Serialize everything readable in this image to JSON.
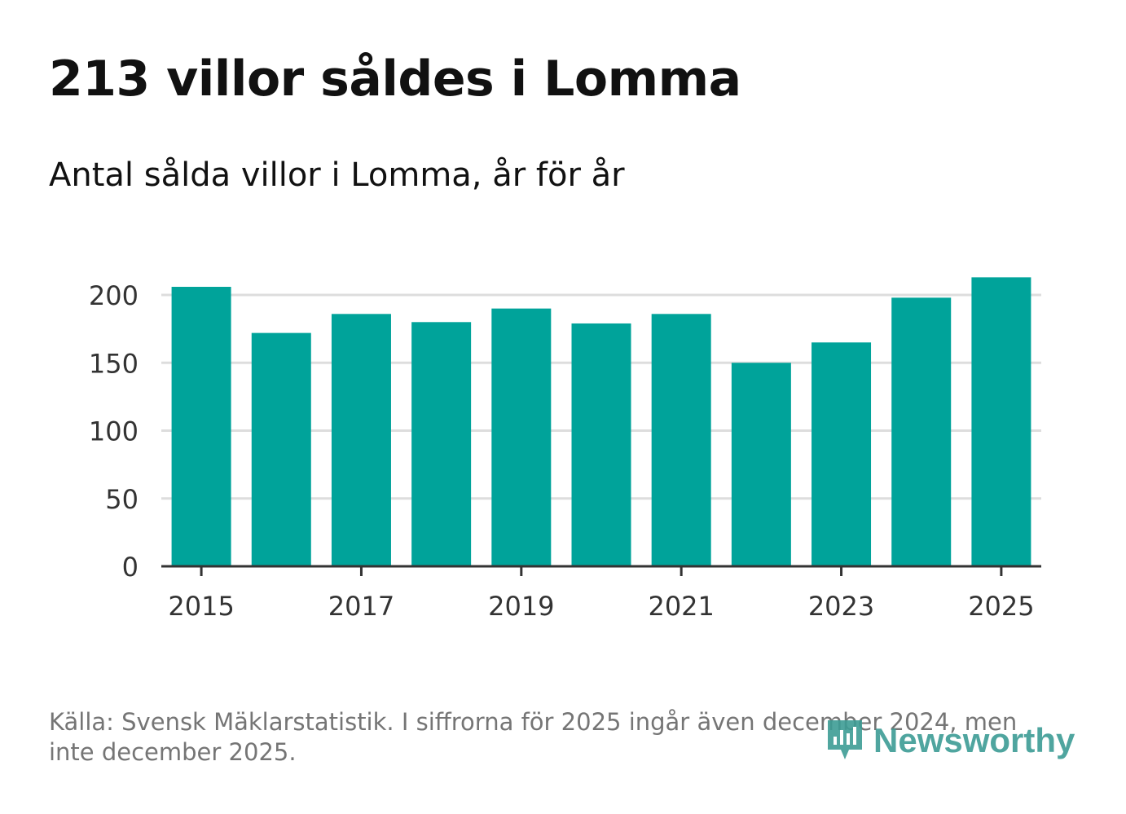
{
  "header": {
    "title": "213 villor såldes i Lomma",
    "subtitle": "Antal sålda villor i Lomma, år för år"
  },
  "footer": {
    "source": "Källa: Svensk Mäklarstatistik. I siffrorna för 2025 ingår även december 2024, men inte december 2025.",
    "logo_text": "Newsworthy"
  },
  "colors": {
    "bar": "#00a39a",
    "grid": "#dddddd",
    "axis": "#333333",
    "tick_text": "#333333",
    "logo": "#3d9c95"
  },
  "chart_data": {
    "type": "bar",
    "title": "Antal sålda villor i Lomma, år för år",
    "xlabel": "",
    "ylabel": "",
    "categories": [
      "2015",
      "2016",
      "2017",
      "2018",
      "2019",
      "2020",
      "2021",
      "2022",
      "2023",
      "2024",
      "2025"
    ],
    "values": [
      206,
      172,
      186,
      180,
      190,
      179,
      186,
      150,
      165,
      198,
      213
    ],
    "ylim": [
      0,
      215
    ],
    "yticks": [
      0,
      50,
      100,
      150,
      200
    ],
    "xtick_labels": [
      "2015",
      "2017",
      "2019",
      "2021",
      "2023",
      "2025"
    ],
    "grid": true,
    "legend": "none"
  }
}
